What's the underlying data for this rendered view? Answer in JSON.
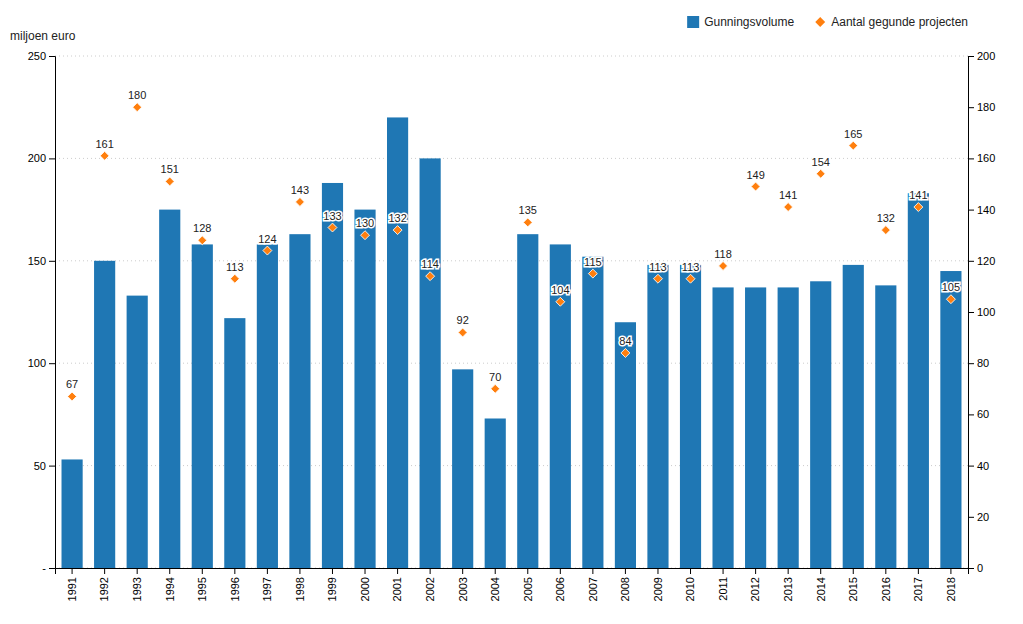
{
  "chart_data": {
    "type": "bar",
    "ylabel": "miljoen euro",
    "categories": [
      "1991",
      "1992",
      "1993",
      "1994",
      "1995",
      "1996",
      "1997",
      "1998",
      "1999",
      "2000",
      "2001",
      "2002",
      "2003",
      "2004",
      "2005",
      "2006",
      "2007",
      "2008",
      "2009",
      "2010",
      "2011",
      "2012",
      "2013",
      "2014",
      "2015",
      "2016",
      "2017",
      "2018"
    ],
    "series": [
      {
        "name": "Gunningsvolume",
        "type": "bar",
        "values": [
          53,
          150,
          133,
          175,
          158,
          122,
          158,
          163,
          188,
          175,
          220,
          200,
          97,
          73,
          163,
          158,
          152,
          120,
          148,
          148,
          137,
          137,
          137,
          140,
          148,
          138,
          183,
          145
        ]
      },
      {
        "name": "Aantal gegunde projecten",
        "type": "scatter",
        "marker": "diamond",
        "axis": "y2",
        "data_labels": true,
        "values": [
          67,
          161,
          180,
          151,
          128,
          113,
          124,
          143,
          133,
          130,
          132,
          114,
          92,
          70,
          135,
          104,
          115,
          84,
          113,
          113,
          118,
          149,
          141,
          154,
          165,
          132,
          141,
          105
        ]
      }
    ],
    "ylim": [
      0,
      250
    ],
    "yticks": [
      {
        "value": 0,
        "label": "-"
      },
      50,
      100,
      150,
      200,
      250
    ],
    "y2lim": [
      0,
      200
    ],
    "y2ticks": [
      0,
      20,
      40,
      60,
      80,
      100,
      120,
      140,
      160,
      180,
      200
    ],
    "grid": true,
    "legend": "upper right"
  }
}
